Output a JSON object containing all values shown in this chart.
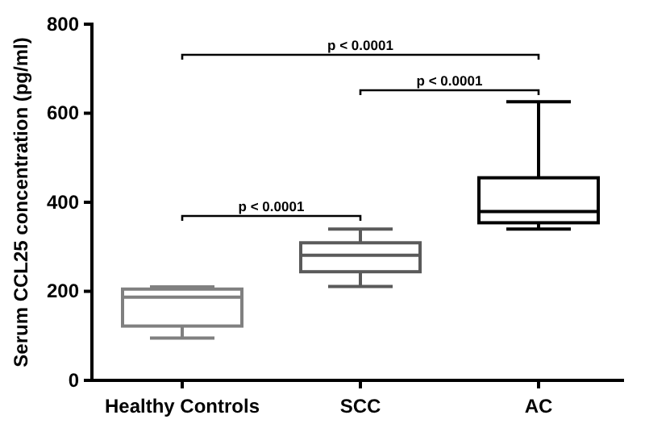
{
  "chart_data": {
    "type": "box",
    "ylabel": "Serum CCL25 concentration (pg/ml)",
    "categories": [
      "Healthy Controls",
      "SCC",
      "AC"
    ],
    "colors": [
      "#808080",
      "#5a5a5a",
      "#000000"
    ],
    "boxes": [
      {
        "low": 95,
        "q1": 122,
        "median": 187,
        "q3": 205,
        "high": 210
      },
      {
        "low": 211,
        "q1": 244,
        "median": 281,
        "q3": 309,
        "high": 340
      },
      {
        "low": 340,
        "q1": 354,
        "median": 379,
        "q3": 455,
        "high": 626
      }
    ],
    "ylim": [
      0,
      800
    ],
    "yticks": [
      0,
      200,
      400,
      600,
      800
    ],
    "annotations": [
      "p < 0.0001",
      "p < 0.0001",
      "p < 0.0001"
    ]
  }
}
